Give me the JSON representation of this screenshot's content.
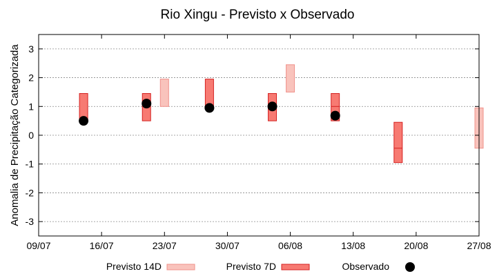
{
  "chart_data": {
    "type": "range-bar",
    "title": "Rio Xingu - Previsto x Observado",
    "ylabel": "Anomalia de Precipitação Categorizada",
    "xlabel": "",
    "ylim": [
      -3.5,
      3.5
    ],
    "yticks": [
      3,
      2,
      1,
      0,
      -1,
      -2,
      -3
    ],
    "x_ticks": [
      {
        "label": "09/07",
        "day": 0
      },
      {
        "label": "16/07",
        "day": 7
      },
      {
        "label": "23/07",
        "day": 14
      },
      {
        "label": "30/07",
        "day": 21
      },
      {
        "label": "06/08",
        "day": 28
      },
      {
        "label": "13/08",
        "day": 35
      },
      {
        "label": "20/08",
        "day": 42
      },
      {
        "label": "27/08",
        "day": 49
      }
    ],
    "grid": true,
    "legend_position": "bottom",
    "colors": {
      "previsto_14d_fill": "#f9c3bc",
      "previsto_14d_stroke": "#f0908a",
      "previsto_7d_fill": "#f77a72",
      "previsto_7d_stroke": "#d42020",
      "observado": "#000000"
    },
    "series": [
      {
        "name": "Previsto 14D",
        "kind": "range",
        "points": [
          {
            "day": 14,
            "low": 1.0,
            "high": 1.95
          },
          {
            "day": 28,
            "low": 1.5,
            "high": 2.45
          },
          {
            "day": 49,
            "low": -0.45,
            "high": 0.95
          }
        ]
      },
      {
        "name": "Previsto 7D",
        "kind": "range",
        "points": [
          {
            "day": 5,
            "low": 0.5,
            "high": 1.45
          },
          {
            "day": 12,
            "low": 0.5,
            "high": 1.45
          },
          {
            "day": 19,
            "low": 0.95,
            "high": 1.95
          },
          {
            "day": 26,
            "low": 0.5,
            "high": 1.45
          },
          {
            "day": 33,
            "low": 0.5,
            "high": 1.45
          },
          {
            "day": 40,
            "low": -0.95,
            "high": 0.45
          }
        ]
      },
      {
        "name": "Observado",
        "kind": "point",
        "points": [
          {
            "day": 5,
            "value": 0.5
          },
          {
            "day": 12,
            "value": 1.1
          },
          {
            "day": 19,
            "value": 0.95
          },
          {
            "day": 26,
            "value": 1.0
          },
          {
            "day": 33,
            "value": 0.68
          }
        ]
      }
    ],
    "range_internal_lines": [
      {
        "day": 12,
        "value": 1.0
      },
      {
        "day": 33,
        "value": 1.0
      },
      {
        "day": 40,
        "value": -0.45
      }
    ]
  }
}
